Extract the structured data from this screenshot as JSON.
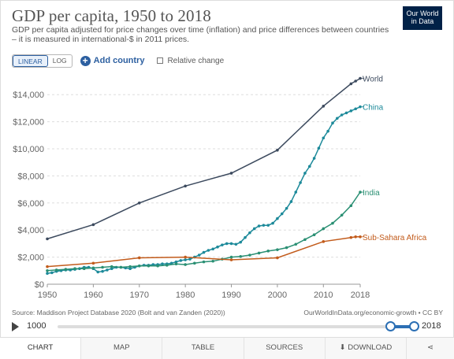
{
  "header": {
    "title": "GDP per capita, 1950 to 2018",
    "subtitle": "GDP per capita adjusted for price changes over time (inflation) and price differences between countries – it is measured in international-$ in 2011 prices.",
    "logo_line1": "Our World",
    "logo_line2": "in Data"
  },
  "controls": {
    "linear_label": "LINEAR",
    "log_label": "LOG",
    "add_country_label": "Add country",
    "relative_change_label": "Relative change"
  },
  "footer": {
    "source": "Source: Maddison Project Database 2020 (Bolt and van Zanden (2020))",
    "owid_link": "OurWorldInData.org/economic-growth • CC BY"
  },
  "timeline": {
    "start_year": "1000",
    "end_year": "2018",
    "start_value": 1000,
    "end_value": 2018,
    "selected_start": 1950,
    "selected_end": 2018
  },
  "tabs": [
    {
      "label": "CHART"
    },
    {
      "label": "MAP"
    },
    {
      "label": "TABLE"
    },
    {
      "label": "SOURCES"
    },
    {
      "label": "DOWNLOAD"
    }
  ],
  "colors": {
    "World": "#3c4a5e",
    "China": "#1d8a9a",
    "India": "#2a8f73",
    "Sub-Sahara Africa": "#c25b1b",
    "accent": "#2c6fb4"
  },
  "chart_data": {
    "type": "line",
    "title": "GDP per capita, 1950 to 2018",
    "xlim": [
      1950,
      2018
    ],
    "ylim": [
      0,
      15000
    ],
    "x_ticks": [
      "1950",
      "1960",
      "1970",
      "1980",
      "1990",
      "2000",
      "2010",
      "2018"
    ],
    "y_ticks": [
      "$0",
      "$2,000",
      "$4,000",
      "$6,000",
      "$8,000",
      "$10,000",
      "$12,000",
      "$14,000"
    ],
    "y_tick_values": [
      0,
      2000,
      4000,
      6000,
      8000,
      10000,
      12000,
      14000
    ],
    "x_tick_values": [
      1950,
      1960,
      1970,
      1980,
      1990,
      2000,
      2010,
      2018
    ],
    "grid": "horizontal",
    "legend": "inline-right",
    "series": [
      {
        "name": "World",
        "x": [
          1950,
          1960,
          1970,
          1980,
          1990,
          2000,
          2010,
          2016,
          2017,
          2018
        ],
        "y": [
          3350,
          4400,
          6000,
          7250,
          8200,
          9900,
          13150,
          14800,
          15000,
          15200
        ]
      },
      {
        "name": "China",
        "x": [
          1950,
          1951,
          1952,
          1953,
          1954,
          1955,
          1956,
          1957,
          1958,
          1959,
          1960,
          1961,
          1962,
          1963,
          1964,
          1965,
          1966,
          1967,
          1968,
          1969,
          1970,
          1971,
          1972,
          1973,
          1974,
          1975,
          1976,
          1977,
          1978,
          1979,
          1980,
          1981,
          1982,
          1983,
          1984,
          1985,
          1986,
          1987,
          1988,
          1989,
          1990,
          1991,
          1992,
          1993,
          1994,
          1995,
          1996,
          1997,
          1998,
          1999,
          2000,
          2001,
          2002,
          2003,
          2004,
          2005,
          2006,
          2007,
          2008,
          2009,
          2010,
          2011,
          2012,
          2013,
          2014,
          2015,
          2016,
          2017,
          2018
        ],
        "y": [
          800,
          850,
          950,
          1000,
          1050,
          1050,
          1100,
          1150,
          1250,
          1250,
          1150,
          900,
          950,
          1050,
          1150,
          1250,
          1250,
          1200,
          1150,
          1250,
          1350,
          1400,
          1400,
          1450,
          1450,
          1500,
          1500,
          1550,
          1650,
          1750,
          1800,
          1850,
          2000,
          2150,
          2350,
          2500,
          2600,
          2750,
          2900,
          3000,
          3000,
          2950,
          3100,
          3450,
          3800,
          4100,
          4300,
          4350,
          4350,
          4500,
          4850,
          5200,
          5600,
          6100,
          6800,
          7500,
          8200,
          8700,
          9300,
          10050,
          10800,
          11300,
          11900,
          12250,
          12500,
          12650,
          12800,
          12950,
          13100
        ]
      },
      {
        "name": "India",
        "x": [
          1950,
          1952,
          1954,
          1956,
          1958,
          1960,
          1962,
          1964,
          1966,
          1968,
          1970,
          1972,
          1974,
          1976,
          1978,
          1980,
          1982,
          1984,
          1986,
          1988,
          1990,
          1992,
          1994,
          1996,
          1998,
          2000,
          2002,
          2004,
          2006,
          2008,
          2010,
          2012,
          2014,
          2016,
          2018
        ],
        "y": [
          1000,
          1050,
          1100,
          1150,
          1150,
          1200,
          1250,
          1300,
          1250,
          1300,
          1350,
          1350,
          1350,
          1400,
          1500,
          1450,
          1550,
          1650,
          1700,
          1850,
          2000,
          2050,
          2150,
          2300,
          2450,
          2550,
          2700,
          2950,
          3300,
          3650,
          4100,
          4500,
          5100,
          5800,
          6800
        ]
      },
      {
        "name": "Sub-Sahara Africa",
        "x": [
          1950,
          1960,
          1970,
          1980,
          1990,
          2000,
          2010,
          2016,
          2017,
          2018
        ],
        "y": [
          1300,
          1550,
          1950,
          2000,
          1800,
          1950,
          3150,
          3450,
          3500,
          3500
        ]
      }
    ]
  }
}
